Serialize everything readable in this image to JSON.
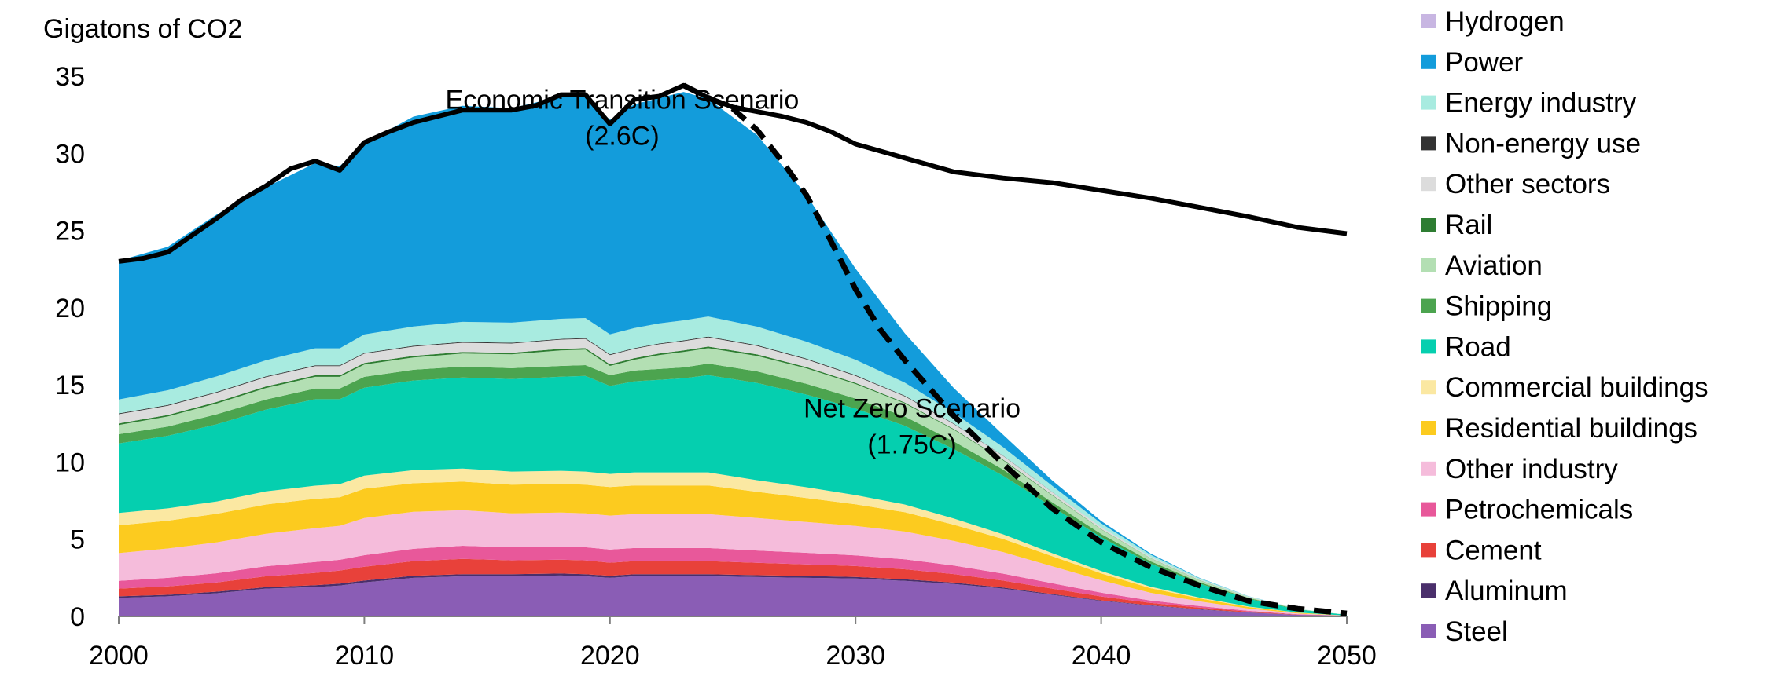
{
  "chart_data": {
    "type": "area",
    "stacked": true,
    "ylabel": "Gigatons of CO2",
    "xlim": [
      2000,
      2050
    ],
    "ylim": [
      0,
      35
    ],
    "x_ticks": [
      2000,
      2010,
      2020,
      2030,
      2040,
      2050
    ],
    "y_ticks": [
      0,
      5,
      10,
      15,
      20,
      25,
      30,
      35
    ],
    "grid": false,
    "legend_position": "right",
    "x": [
      2000,
      2002,
      2004,
      2006,
      2008,
      2009,
      2010,
      2012,
      2014,
      2016,
      2018,
      2019,
      2020,
      2021,
      2022,
      2023,
      2024,
      2026,
      2028,
      2030,
      2032,
      2034,
      2036,
      2038,
      2040,
      2042,
      2044,
      2046,
      2048,
      2050
    ],
    "series": [
      {
        "name": "Steel",
        "color": "#8a5db5",
        "values": [
          1.2,
          1.3,
          1.5,
          1.8,
          1.9,
          2.0,
          2.2,
          2.5,
          2.6,
          2.6,
          2.65,
          2.6,
          2.5,
          2.6,
          2.6,
          2.6,
          2.6,
          2.55,
          2.5,
          2.45,
          2.3,
          2.1,
          1.8,
          1.4,
          1.0,
          0.7,
          0.45,
          0.25,
          0.1,
          0.05
        ]
      },
      {
        "name": "Aluminum",
        "color": "#4a2f6b",
        "values": [
          0.1,
          0.1,
          0.1,
          0.1,
          0.12,
          0.12,
          0.12,
          0.13,
          0.13,
          0.13,
          0.13,
          0.13,
          0.13,
          0.13,
          0.13,
          0.13,
          0.13,
          0.12,
          0.12,
          0.11,
          0.1,
          0.09,
          0.07,
          0.05,
          0.04,
          0.03,
          0.02,
          0.01,
          0.0,
          0.0
        ]
      },
      {
        "name": "Cement",
        "color": "#e8413a",
        "values": [
          0.5,
          0.55,
          0.6,
          0.7,
          0.8,
          0.85,
          0.9,
          0.95,
          1.0,
          0.9,
          0.9,
          0.9,
          0.85,
          0.85,
          0.85,
          0.85,
          0.85,
          0.8,
          0.75,
          0.7,
          0.65,
          0.55,
          0.45,
          0.35,
          0.25,
          0.15,
          0.1,
          0.05,
          0.02,
          0.0
        ]
      },
      {
        "name": "Petrochemicals",
        "color": "#e8589a",
        "values": [
          0.5,
          0.55,
          0.6,
          0.65,
          0.7,
          0.7,
          0.75,
          0.8,
          0.85,
          0.85,
          0.85,
          0.85,
          0.85,
          0.85,
          0.85,
          0.85,
          0.85,
          0.8,
          0.75,
          0.7,
          0.65,
          0.55,
          0.45,
          0.35,
          0.25,
          0.15,
          0.1,
          0.05,
          0.02,
          0.0
        ]
      },
      {
        "name": "Other industry",
        "color": "#f5bcdb",
        "values": [
          1.8,
          1.9,
          2.0,
          2.1,
          2.2,
          2.2,
          2.4,
          2.4,
          2.3,
          2.2,
          2.2,
          2.2,
          2.2,
          2.2,
          2.2,
          2.2,
          2.2,
          2.1,
          2.0,
          1.9,
          1.8,
          1.6,
          1.4,
          1.1,
          0.8,
          0.5,
          0.3,
          0.15,
          0.05,
          0.0
        ]
      },
      {
        "name": "Residential buildings",
        "color": "#fccb1f",
        "values": [
          1.8,
          1.8,
          1.85,
          1.9,
          1.9,
          1.85,
          1.9,
          1.85,
          1.85,
          1.85,
          1.85,
          1.85,
          1.85,
          1.85,
          1.85,
          1.85,
          1.85,
          1.7,
          1.55,
          1.4,
          1.25,
          1.05,
          0.85,
          0.65,
          0.45,
          0.3,
          0.2,
          0.1,
          0.05,
          0.0
        ]
      },
      {
        "name": "Commercial buildings",
        "color": "#fbe8a2",
        "values": [
          0.8,
          0.8,
          0.8,
          0.85,
          0.85,
          0.85,
          0.85,
          0.85,
          0.85,
          0.85,
          0.85,
          0.85,
          0.85,
          0.85,
          0.85,
          0.85,
          0.85,
          0.75,
          0.7,
          0.6,
          0.5,
          0.4,
          0.3,
          0.2,
          0.15,
          0.1,
          0.05,
          0.03,
          0.01,
          0.0
        ]
      },
      {
        "name": "Road",
        "color": "#05cfaf",
        "values": [
          4.5,
          4.7,
          5.0,
          5.3,
          5.6,
          5.5,
          5.7,
          5.8,
          5.9,
          6.0,
          6.1,
          6.2,
          5.7,
          5.9,
          6.0,
          6.1,
          6.3,
          6.3,
          6.0,
          5.6,
          5.1,
          4.5,
          3.8,
          3.0,
          2.2,
          1.5,
          0.9,
          0.5,
          0.2,
          0.05
        ]
      },
      {
        "name": "Shipping",
        "color": "#4ca44f",
        "values": [
          0.6,
          0.6,
          0.65,
          0.65,
          0.7,
          0.7,
          0.7,
          0.7,
          0.7,
          0.7,
          0.7,
          0.7,
          0.7,
          0.7,
          0.7,
          0.7,
          0.75,
          0.75,
          0.7,
          0.65,
          0.6,
          0.5,
          0.4,
          0.3,
          0.2,
          0.15,
          0.1,
          0.05,
          0.02,
          0.0
        ]
      },
      {
        "name": "Aviation",
        "color": "#b3dfb3",
        "values": [
          0.6,
          0.65,
          0.7,
          0.75,
          0.75,
          0.75,
          0.8,
          0.8,
          0.85,
          0.9,
          1.0,
          1.0,
          0.6,
          0.7,
          0.9,
          1.0,
          1.0,
          1.0,
          1.0,
          0.95,
          0.85,
          0.75,
          0.6,
          0.45,
          0.3,
          0.2,
          0.12,
          0.06,
          0.02,
          0.0
        ]
      },
      {
        "name": "Rail",
        "color": "#2e7d32",
        "values": [
          0.1,
          0.1,
          0.1,
          0.1,
          0.1,
          0.1,
          0.1,
          0.1,
          0.1,
          0.1,
          0.1,
          0.1,
          0.1,
          0.1,
          0.1,
          0.1,
          0.1,
          0.1,
          0.08,
          0.07,
          0.06,
          0.05,
          0.04,
          0.03,
          0.02,
          0.01,
          0.01,
          0.0,
          0.0,
          0.0
        ]
      },
      {
        "name": "Other sectors",
        "color": "#dcdcdc",
        "values": [
          0.6,
          0.6,
          0.6,
          0.6,
          0.6,
          0.6,
          0.6,
          0.6,
          0.6,
          0.6,
          0.6,
          0.6,
          0.6,
          0.6,
          0.6,
          0.6,
          0.6,
          0.55,
          0.5,
          0.45,
          0.4,
          0.32,
          0.25,
          0.18,
          0.12,
          0.07,
          0.04,
          0.02,
          0.0,
          0.0
        ]
      },
      {
        "name": "Non-energy use",
        "color": "#333333",
        "values": [
          0.05,
          0.05,
          0.05,
          0.05,
          0.05,
          0.05,
          0.05,
          0.05,
          0.05,
          0.05,
          0.05,
          0.05,
          0.05,
          0.05,
          0.05,
          0.05,
          0.05,
          0.05,
          0.05,
          0.05,
          0.04,
          0.03,
          0.02,
          0.01,
          0.0,
          0.0,
          0.0,
          0.0,
          0.0,
          0.0
        ]
      },
      {
        "name": "Energy industry",
        "color": "#a8ebe0",
        "values": [
          0.9,
          0.95,
          1.0,
          1.05,
          1.1,
          1.1,
          1.2,
          1.25,
          1.3,
          1.3,
          1.3,
          1.3,
          1.3,
          1.3,
          1.3,
          1.3,
          1.3,
          1.2,
          1.1,
          1.0,
          0.85,
          0.7,
          0.55,
          0.4,
          0.25,
          0.15,
          0.08,
          0.03,
          0.01,
          0.0
        ]
      },
      {
        "name": "Power",
        "color": "#139cdb",
        "values": [
          9.0,
          9.3,
          10.5,
          11.2,
          12.0,
          11.8,
          12.4,
          13.6,
          14.0,
          13.9,
          14.4,
          14.3,
          13.9,
          14.5,
          14.6,
          14.8,
          14.1,
          12.4,
          9.5,
          5.9,
          3.2,
          1.6,
          0.8,
          0.35,
          0.15,
          0.07,
          0.03,
          0.01,
          0.0,
          0.0
        ]
      },
      {
        "name": "Hydrogen",
        "color": "#c8b6e2",
        "values": [
          0.0,
          0.0,
          0.0,
          0.0,
          0.0,
          0.0,
          0.0,
          0.0,
          0.0,
          0.0,
          0.0,
          0.0,
          0.0,
          0.0,
          0.0,
          0.0,
          0.0,
          0.0,
          0.0,
          0.0,
          0.0,
          0.0,
          0.0,
          0.0,
          0.0,
          0.0,
          0.0,
          0.0,
          0.0,
          0.0
        ]
      }
    ],
    "lines": [
      {
        "name": "Economic Transition Scenario",
        "style": "solid",
        "x": [
          2000,
          2001,
          2002,
          2003,
          2004,
          2005,
          2006,
          2007,
          2008,
          2009,
          2010,
          2011,
          2012,
          2013,
          2014,
          2015,
          2016,
          2017,
          2018,
          2019,
          2020,
          2021,
          2022,
          2023,
          2024,
          2025,
          2026,
          2027,
          2028,
          2029,
          2030,
          2032,
          2034,
          2036,
          2038,
          2040,
          2042,
          2044,
          2046,
          2048,
          2050
        ],
        "values": [
          23.0,
          23.2,
          23.6,
          24.7,
          25.8,
          27.0,
          27.9,
          29.0,
          29.5,
          28.9,
          30.7,
          31.4,
          32.0,
          32.4,
          32.8,
          32.8,
          32.8,
          33.1,
          33.8,
          33.8,
          31.9,
          33.5,
          33.7,
          34.4,
          33.6,
          33.0,
          32.7,
          32.4,
          32.0,
          31.4,
          30.6,
          29.7,
          28.8,
          28.4,
          28.1,
          27.6,
          27.1,
          26.5,
          25.9,
          25.2,
          24.8
        ]
      },
      {
        "name": "Net Zero Scenario",
        "style": "dashed",
        "x": [
          2023,
          2024,
          2025,
          2026,
          2027,
          2028,
          2029,
          2030,
          2031,
          2032,
          2034,
          2036,
          2038,
          2040,
          2042,
          2044,
          2046,
          2048,
          2050
        ],
        "values": [
          34.4,
          33.6,
          32.9,
          31.5,
          29.5,
          27.3,
          24.3,
          21.2,
          18.6,
          16.6,
          13.0,
          9.9,
          7.0,
          4.8,
          3.2,
          2.0,
          1.0,
          0.5,
          0.2
        ]
      }
    ],
    "annotations": [
      {
        "lines": [
          "Economic Transition Scenario",
          "(2.6C)"
        ],
        "x": 2020.5,
        "y": 32.9,
        "anchor": "middle"
      },
      {
        "lines": [
          "Net Zero Scenario",
          "(1.75C)"
        ],
        "x": 2032.3,
        "y": 12.9,
        "anchor": "middle"
      }
    ],
    "legend": [
      "Hydrogen",
      "Power",
      "Energy industry",
      "Non-energy use",
      "Other sectors",
      "Rail",
      "Aviation",
      "Shipping",
      "Road",
      "Commercial buildings",
      "Residential buildings",
      "Other industry",
      "Petrochemicals",
      "Cement",
      "Aluminum",
      "Steel"
    ]
  }
}
